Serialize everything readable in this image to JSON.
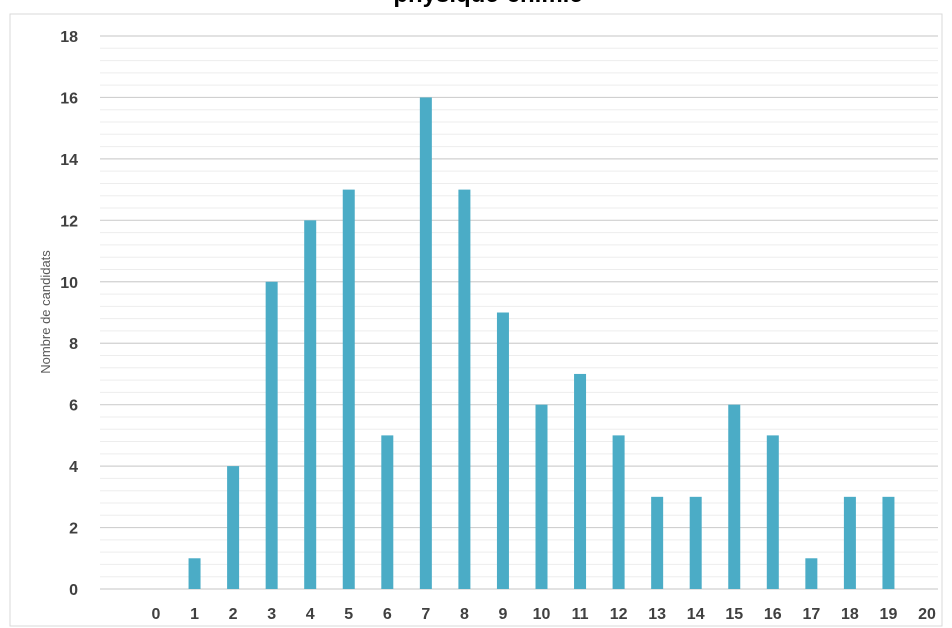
{
  "chart_data": {
    "type": "bar",
    "title": "physique-chimie",
    "xlabel": "",
    "ylabel": "Nombre de candidats",
    "categories": [
      "0",
      "1",
      "2",
      "3",
      "4",
      "5",
      "6",
      "7",
      "8",
      "9",
      "10",
      "11",
      "12",
      "13",
      "14",
      "15",
      "16",
      "17",
      "18",
      "19",
      "20"
    ],
    "values": [
      0,
      1,
      4,
      10,
      12,
      13,
      5,
      16,
      13,
      9,
      6,
      7,
      5,
      3,
      3,
      6,
      5,
      1,
      3,
      3,
      0
    ],
    "ylim": [
      0,
      18
    ],
    "yticks": [
      "0",
      "2",
      "4",
      "6",
      "8",
      "10",
      "12",
      "14",
      "16",
      "18"
    ],
    "grid": true,
    "legend": "none",
    "colors": {
      "bar": "#4BACC6",
      "major_grid": "#D0D0D0",
      "minor_grid": "#EDEDED",
      "frame": "#D9D9D9"
    }
  }
}
